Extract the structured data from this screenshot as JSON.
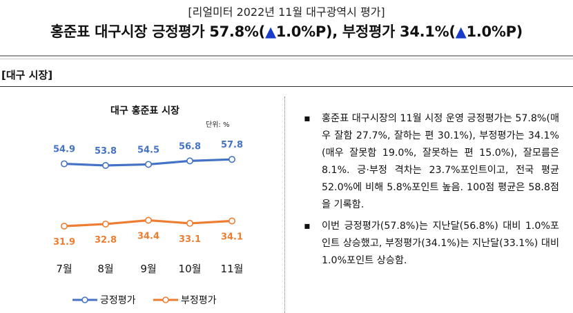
{
  "header": {
    "top_label": "[리얼미터 2022년 11월 대구광역시 평가]",
    "headline_a": "홍준표 대구시장 긍정평가 57.8%(",
    "headline_b": "1.0%P), 부정평가 34.1%(",
    "headline_c": "1.0%P)",
    "up_mark": "▲"
  },
  "section_title": "[대구 시장]",
  "chart_data": {
    "type": "line",
    "title": "대구 홍준표 시장",
    "unit_label": "단위: %",
    "categories": [
      "7월",
      "8월",
      "9월",
      "10월",
      "11월"
    ],
    "series": [
      {
        "name": "긍정평가",
        "color": "#4472C4",
        "values": [
          54.9,
          53.8,
          54.5,
          56.8,
          57.8
        ]
      },
      {
        "name": "부정평가",
        "color": "#ED7D31",
        "values": [
          31.9,
          32.8,
          34.4,
          33.1,
          34.1
        ]
      }
    ],
    "legend_position": "bottom",
    "grid": false
  },
  "bullets": {
    "mark": "▪",
    "items": [
      "홍준표 대구시장의 11월 시정 운영 긍정평가는 57.8%(매우 잘함 27.7%, 잘하는 편 30.1%), 부정평가는 34.1%(매우 잘못함 19.0%, 잘못하는 편 15.0%), 잘모름은 8.1%. 긍·부정 격차는 23.7%포인트이고, 전국 평균 52.0%에 비해 5.8%포인트 높음. 100점 평균은 58.8점을 기록함.",
      "이번 긍정평가(57.8%)는 지난달(56.8%) 대비 1.0%포인트 상승했고, 부정평가(34.1%)는 지난달(33.1%) 대비 1.0%포인트 상승함."
    ]
  }
}
